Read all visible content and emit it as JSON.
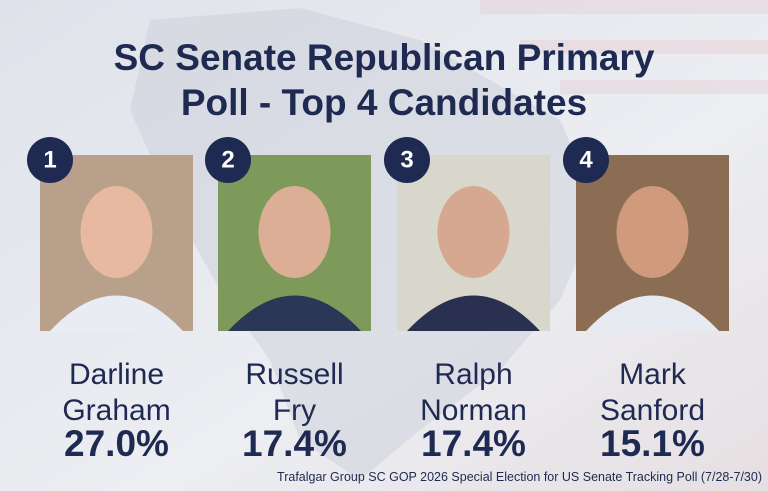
{
  "header": {
    "title_lines": [
      "SC Senate Republican Primary",
      "Poll - Top 4 Candidates"
    ]
  },
  "candidates": [
    {
      "rank": "1",
      "name_lines": [
        "Darline",
        "Graham"
      ],
      "percent": "27.0%"
    },
    {
      "rank": "2",
      "name_lines": [
        "Russell",
        "Fry"
      ],
      "percent": "17.4%"
    },
    {
      "rank": "3",
      "name_lines": [
        "Ralph",
        "Norman"
      ],
      "percent": "17.4%"
    },
    {
      "rank": "4",
      "name_lines": [
        "Mark",
        "Sanford"
      ],
      "percent": "15.1%"
    }
  ],
  "source": "Trafalgar Group SC GOP 2026 Special Election for US Senate Tracking Poll (7/28-7/30)"
}
